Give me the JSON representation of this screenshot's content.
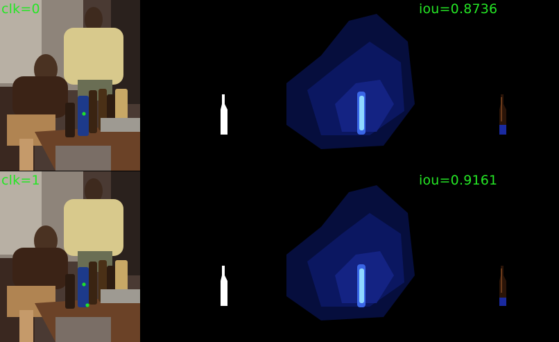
{
  "rows": [
    {
      "clk_label": "clk=0",
      "iou_label": "iou=0.8736"
    },
    {
      "clk_label": "clk=1",
      "iou_label": "iou=0.9161"
    }
  ],
  "colors": {
    "label_green": "#25e625",
    "click_dot": "#1fe02a",
    "heatmap_blue": "#1a2aa0",
    "heatmap_peak": "#8fd8ff",
    "mask_white": "#ffffff"
  }
}
